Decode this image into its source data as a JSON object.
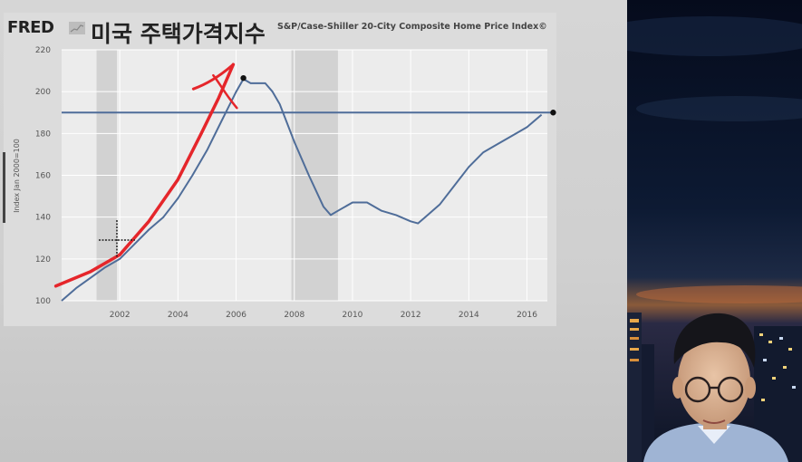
{
  "header": {
    "logo": "FRED",
    "title": "미국 주택가격지수",
    "subtitle": "S&P/Case-Shiller 20-City Composite Home Price Index©"
  },
  "chart_data": {
    "type": "line",
    "title": "미국 주택가격지수",
    "subtitle": "S&P/Case-Shiller 20-City Composite Home Price Index©",
    "ylabel": "Index Jan 2000=100",
    "xlabel": "",
    "xlim": [
      2000.0,
      2016.7
    ],
    "ylim": [
      100,
      220
    ],
    "yticks": [
      100,
      120,
      140,
      160,
      180,
      200,
      220
    ],
    "xticks": [
      2002,
      2004,
      2006,
      2008,
      2010,
      2012,
      2014,
      2016
    ],
    "grid": true,
    "recessions": [
      [
        2001.2,
        2001.9
      ],
      [
        2007.9,
        2009.5
      ]
    ],
    "series": [
      {
        "color": "#4f6d99",
        "x": [
          2000.0,
          2000.5,
          2001.0,
          2001.5,
          2002.0,
          2002.5,
          2003.0,
          2003.5,
          2004.0,
          2004.5,
          2005.0,
          2005.5,
          2006.0,
          2006.25,
          2006.5,
          2007.0,
          2007.25,
          2007.5,
          2008.0,
          2008.5,
          2009.0,
          2009.25,
          2009.5,
          2010.0,
          2010.5,
          2011.0,
          2011.5,
          2012.0,
          2012.25,
          2012.5,
          2013.0,
          2013.5,
          2014.0,
          2014.5,
          2015.0,
          2015.5,
          2016.0,
          2016.5
        ],
        "y": [
          100,
          106,
          111,
          116,
          120,
          127,
          134,
          140,
          149,
          160,
          172,
          186,
          200,
          206,
          204,
          204,
          200,
          194,
          176,
          160,
          145,
          141,
          143,
          147,
          147,
          143,
          141,
          138,
          137,
          140,
          146,
          155,
          164,
          171,
          175,
          179,
          183,
          189
        ]
      }
    ],
    "reference_line": {
      "y": 190,
      "color": "#4f6d99"
    },
    "markers": [
      {
        "x": 2006.25,
        "y": 206.5
      },
      {
        "x": 2016.9,
        "y": 190
      }
    ],
    "annotations": {
      "pen_color": "#e5262b",
      "pen_trend": [
        [
          1999.8,
          107
        ],
        [
          2001.0,
          114
        ],
        [
          2002.0,
          122
        ],
        [
          2003.0,
          138
        ],
        [
          2004.0,
          158
        ],
        [
          2004.8,
          180
        ],
        [
          2005.4,
          197
        ],
        [
          2005.9,
          213
        ]
      ]
    }
  },
  "webcam": {
    "description_colors": {
      "sky_top": "#050b1c",
      "sky_mid": "#142540",
      "glow": "#b8683a"
    }
  }
}
